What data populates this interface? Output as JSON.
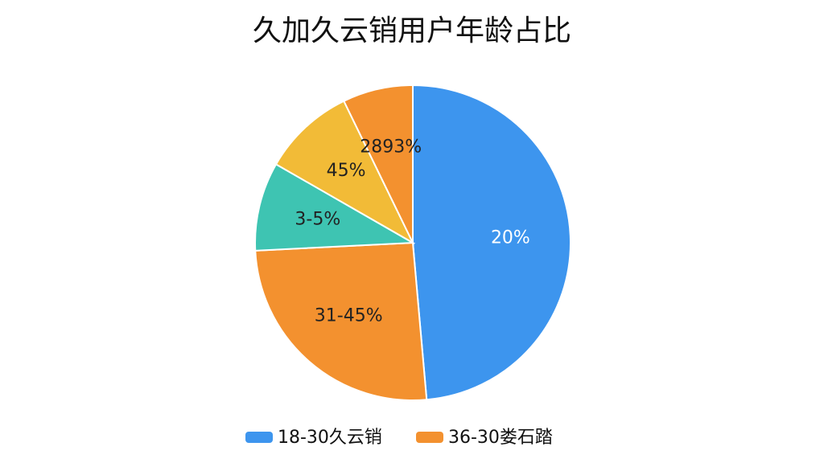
{
  "chart_data": {
    "type": "pie",
    "title": "久加久云销用户年龄占比",
    "categories": [
      "20%",
      "31-45%",
      "3-5%",
      "45%",
      "2893%"
    ],
    "values": [
      48.6,
      25.6,
      9.1,
      9.5,
      7.2
    ],
    "colors": [
      "#3d95ee",
      "#f3912f",
      "#3ec4b2",
      "#f2bb37",
      "#f3912f"
    ],
    "label_colors": [
      "#ffffff",
      "#222222",
      "#222222",
      "#222222",
      "#222222"
    ],
    "legend": [
      {
        "name": "18-30久云销",
        "color": "#3d95ee"
      },
      {
        "name": "36-30娄石踏",
        "color": "#f3912f"
      }
    ]
  }
}
